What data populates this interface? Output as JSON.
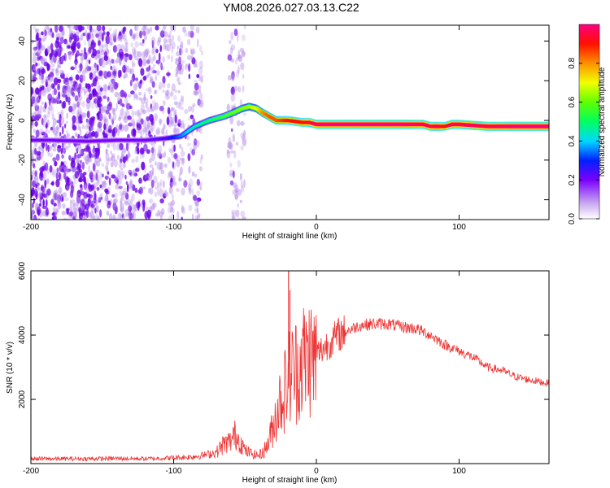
{
  "title": "YM08.2026.027.03.13.C22",
  "chart_data": [
    {
      "id": "spectrogram",
      "type": "heatmap",
      "xlabel": "Height of straight line (km)",
      "ylabel": "Frequency (Hz)",
      "xlim": [
        -200,
        163
      ],
      "ylim": [
        -50,
        48
      ],
      "xticks": [
        -200,
        -100,
        0,
        100
      ],
      "yticks": [
        -40,
        -20,
        0,
        20,
        40
      ],
      "colorbar": {
        "label": "Normalized spectral amplitude",
        "range": [
          0,
          1
        ],
        "ticks": [
          0.0,
          0.2,
          0.4,
          0.6,
          0.8
        ]
      },
      "ridge": {
        "x": [
          -200,
          -185,
          -160,
          -140,
          -120,
          -105,
          -95,
          -85,
          -75,
          -65,
          -58,
          -52,
          -47,
          -42,
          -38,
          -33,
          -28,
          -20,
          -10,
          -5,
          0,
          5,
          20,
          40,
          60,
          75,
          80,
          85,
          90,
          95,
          100,
          120,
          140,
          163
        ],
        "freq": [
          -10,
          -10,
          -10.5,
          -10,
          -10,
          -9,
          -8,
          -3,
          0,
          2,
          4,
          6,
          7,
          6,
          4,
          2,
          0,
          0,
          -1,
          -1,
          -2,
          -2,
          -2,
          -2,
          -2,
          -2,
          -3,
          -3,
          -3,
          -2,
          -2,
          -3,
          -3,
          -3
        ],
        "amplitude": [
          0.2,
          0.2,
          0.2,
          0.2,
          0.2,
          0.25,
          0.35,
          0.45,
          0.5,
          0.55,
          0.6,
          0.62,
          0.65,
          0.7,
          0.8,
          0.85,
          0.85,
          0.9,
          0.9,
          0.95,
          0.97,
          1.0,
          1.0,
          1.0,
          1.0,
          0.97,
          0.95,
          0.97,
          0.9,
          0.97,
          0.97,
          0.96,
          1.0,
          1.0
        ]
      }
    },
    {
      "id": "snr",
      "type": "line",
      "xlabel": "Height of straight line (km)",
      "ylabel": "SNR (10 * v/v)",
      "xlim": [
        -200,
        163
      ],
      "ylim": [
        0,
        6000
      ],
      "xticks": [
        -200,
        -100,
        0,
        100
      ],
      "yticks": [
        2000,
        4000,
        6000
      ],
      "series": [
        {
          "name": "SNR",
          "color": "#ee3333",
          "x": [
            -200,
            -180,
            -160,
            -140,
            -120,
            -100,
            -90,
            -80,
            -70,
            -65,
            -60,
            -57,
            -55,
            -52,
            -50,
            -45,
            -40,
            -35,
            -30,
            -27,
            -25,
            -22,
            -20,
            -18,
            -15,
            -12,
            -10,
            -7,
            -5,
            -2,
            0,
            5,
            10,
            15,
            20,
            25,
            30,
            40,
            50,
            55,
            60,
            70,
            80,
            90,
            100,
            110,
            120,
            130,
            140,
            150,
            163
          ],
          "y": [
            150,
            150,
            150,
            160,
            150,
            180,
            200,
            250,
            350,
            600,
            700,
            900,
            800,
            600,
            400,
            300,
            250,
            500,
            1200,
            1800,
            2000,
            2300,
            2600,
            2800,
            2900,
            3000,
            3300,
            3200,
            3400,
            3200,
            3400,
            3600,
            3800,
            4000,
            4100,
            4200,
            4300,
            4350,
            4350,
            4300,
            4250,
            4200,
            4000,
            3700,
            3500,
            3300,
            3000,
            2900,
            2700,
            2600,
            2500
          ],
          "spikes": [
            {
              "x": -19.5,
              "y": 6000
            },
            {
              "x": -18.5,
              "y": 5400
            }
          ]
        }
      ]
    }
  ]
}
